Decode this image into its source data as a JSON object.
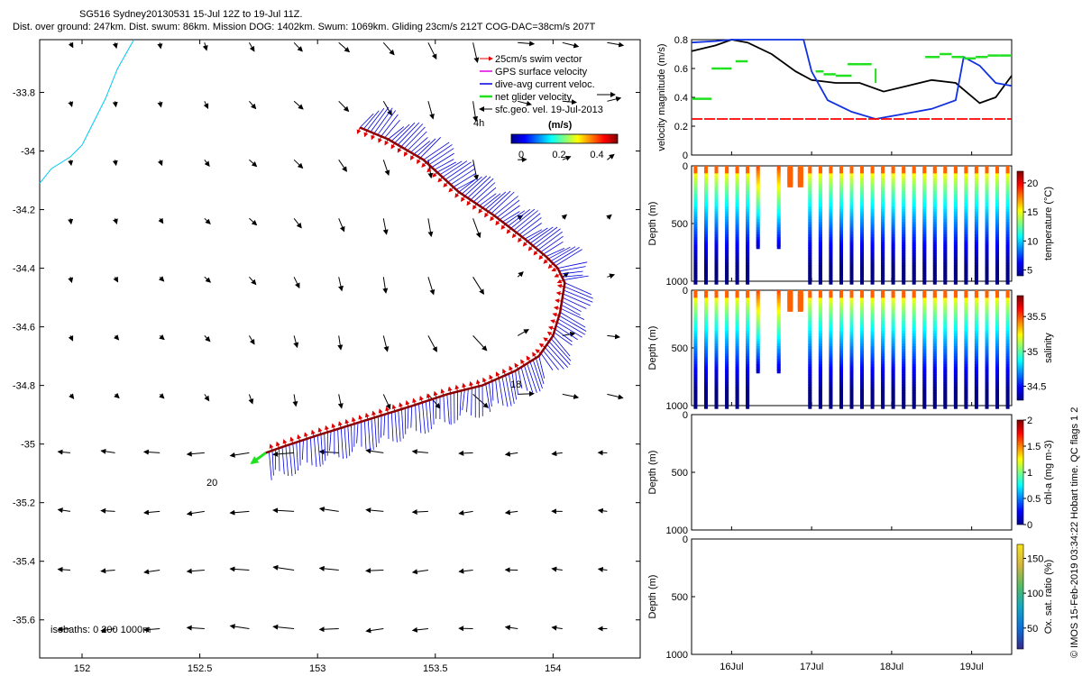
{
  "header": {
    "line1": "SG516 Sydney20130531 15-Jul 12Z to 19-Jul 11Z.",
    "line2": "Dist. over ground: 247km. Dist. swum: 86km. Mission DOG: 1402km. Swum: 1069km. Gliding 23cm/s 212T COG-DAC=38cm/s 207T"
  },
  "footer_text": "© IMOS 15-Feb-2019 03:34:22 Hobart time. QC flags 1  2",
  "colors": {
    "swim": "#e00000",
    "gps": "#e000e0",
    "dac": "#0000e0",
    "net": "#20e020",
    "sfc": "#000000",
    "coast": "#00c8f0"
  },
  "chart_data": [
    {
      "type": "scatter",
      "title": "",
      "xlabel": "",
      "ylabel": "",
      "xlim": [
        151.82,
        154.37
      ],
      "ylim": [
        -35.73,
        -33.62
      ],
      "xticks": [
        "152",
        "152.5",
        "153",
        "153.5",
        "154"
      ],
      "yticks": [
        "-33.8",
        "-34",
        "-34.2",
        "-34.4",
        "-34.6",
        "-34.8",
        "-35",
        "-35.2",
        "-35.4",
        "-35.6"
      ],
      "legend": {
        "placement": "top-right",
        "entries": [
          "25cm/s swim vector",
          "GPS surface velocity",
          "dive-avg current veloc.",
          "net glider velocity",
          "sfc.geo. vel. 19-Jul-2013"
        ]
      },
      "colorbar": {
        "label": "(m/s)",
        "ticks": [
          "0",
          "0.2",
          "0.4"
        ],
        "range": [
          0,
          0.5
        ]
      },
      "annotations": [
        "4h",
        "18",
        "20"
      ],
      "isobaths_label": "isobaths: 0   200   1000m",
      "track": [
        [
          153.18,
          -33.92
        ],
        [
          153.3,
          -33.96
        ],
        [
          153.45,
          -34.03
        ],
        [
          153.6,
          -34.14
        ],
        [
          153.75,
          -34.22
        ],
        [
          153.88,
          -34.3
        ],
        [
          153.97,
          -34.36
        ],
        [
          154.02,
          -34.4
        ],
        [
          154.05,
          -34.45
        ],
        [
          154.03,
          -34.55
        ],
        [
          154.0,
          -34.63
        ],
        [
          153.94,
          -34.7
        ],
        [
          153.84,
          -34.75
        ],
        [
          153.7,
          -34.8
        ],
        [
          153.55,
          -34.83
        ],
        [
          153.4,
          -34.87
        ],
        [
          153.2,
          -34.92
        ],
        [
          153.0,
          -34.97
        ],
        [
          152.85,
          -35.01
        ],
        [
          152.78,
          -35.03
        ]
      ],
      "net_velocity": {
        "from": [
          152.78,
          -35.03
        ],
        "to": [
          152.72,
          -35.065
        ]
      },
      "coast": [
        [
          152.22,
          -33.62
        ],
        [
          152.15,
          -33.72
        ],
        [
          152.1,
          -33.82
        ],
        [
          152.05,
          -33.9
        ],
        [
          152.0,
          -33.98
        ],
        [
          151.95,
          -34.02
        ],
        [
          151.87,
          -34.06
        ],
        [
          151.82,
          -34.11
        ]
      ]
    },
    {
      "type": "line",
      "ylabel": "velocity magnitude (m/s)",
      "ylim": [
        0,
        0.8
      ],
      "yticks": [
        "0",
        "0.2",
        "0.4",
        "0.6",
        "0.8"
      ],
      "xlim": [
        15.5,
        19.5
      ],
      "series": [
        {
          "color": "black",
          "x": [
            15.5,
            15.8,
            16.0,
            16.2,
            16.5,
            16.8,
            17.0,
            17.3,
            17.6,
            17.9,
            18.2,
            18.5,
            18.8,
            19.1,
            19.3,
            19.5
          ],
          "values": [
            0.72,
            0.76,
            0.8,
            0.78,
            0.7,
            0.58,
            0.52,
            0.5,
            0.5,
            0.44,
            0.48,
            0.52,
            0.5,
            0.36,
            0.4,
            0.55
          ]
        },
        {
          "color": "blue",
          "x": [
            15.5,
            15.8,
            16.0,
            16.2,
            16.9,
            17.0,
            17.2,
            17.5,
            17.8,
            18.1,
            18.5,
            18.8,
            18.9,
            19.1,
            19.3,
            19.5
          ],
          "values": [
            0.78,
            0.79,
            0.8,
            0.8,
            0.8,
            0.58,
            0.38,
            0.3,
            0.25,
            0.28,
            0.32,
            0.38,
            0.68,
            0.62,
            0.5,
            0.48
          ]
        },
        {
          "color": "red",
          "x": [
            15.5,
            19.5
          ],
          "values": [
            0.25,
            0.25
          ]
        }
      ],
      "green_segments": [
        [
          15.5,
          15.75,
          0.39
        ],
        [
          15.75,
          15.87,
          0.6
        ],
        [
          15.87,
          16.0,
          0.6
        ],
        [
          16.05,
          16.2,
          0.65
        ],
        [
          17.05,
          17.15,
          0.58
        ],
        [
          17.15,
          17.3,
          0.56
        ],
        [
          17.3,
          17.5,
          0.55
        ],
        [
          17.45,
          17.6,
          0.63
        ],
        [
          17.6,
          17.75,
          0.63
        ],
        [
          18.42,
          18.6,
          0.68
        ],
        [
          18.6,
          18.75,
          0.7
        ],
        [
          18.75,
          18.9,
          0.68
        ],
        [
          18.9,
          19.05,
          0.67
        ],
        [
          19.05,
          19.2,
          0.68
        ],
        [
          19.2,
          19.35,
          0.69
        ],
        [
          19.35,
          19.5,
          0.69
        ]
      ]
    },
    {
      "type": "scatter",
      "ylabel": "Depth (m)",
      "ylim": [
        1000,
        0
      ],
      "yticks": [
        "0",
        "500",
        "1000"
      ],
      "colorbar": {
        "label": "temperature (°C)",
        "ticks": [
          "5",
          "10",
          "15",
          "20"
        ],
        "range": [
          4,
          22
        ]
      }
    },
    {
      "type": "scatter",
      "ylabel": "Depth (m)",
      "ylim": [
        1000,
        0
      ],
      "yticks": [
        "0",
        "500",
        "1000"
      ],
      "colorbar": {
        "label": "salinity",
        "ticks": [
          "34.5",
          "35",
          "35.5"
        ],
        "range": [
          34.3,
          35.8
        ]
      }
    },
    {
      "type": "scatter",
      "ylabel": "Depth (m)",
      "ylim": [
        1000,
        0
      ],
      "yticks": [
        "0",
        "500",
        "1000"
      ],
      "colorbar": {
        "label": "chl-a (mg m-3)",
        "ticks": [
          "0",
          "0.5",
          "1",
          "1.5",
          "2"
        ],
        "range": [
          0,
          2
        ]
      }
    },
    {
      "type": "scatter",
      "ylabel": "Depth (m)",
      "ylim": [
        1000,
        0
      ],
      "yticks": [
        "0",
        "500",
        "1000"
      ],
      "xticks": [
        "16Jul",
        "17Jul",
        "18Jul",
        "19Jul"
      ],
      "colorbar": {
        "label": "Ox. sat. ratio (%)",
        "ticks": [
          "50",
          "100",
          "150"
        ],
        "range": [
          20,
          170
        ]
      }
    }
  ]
}
